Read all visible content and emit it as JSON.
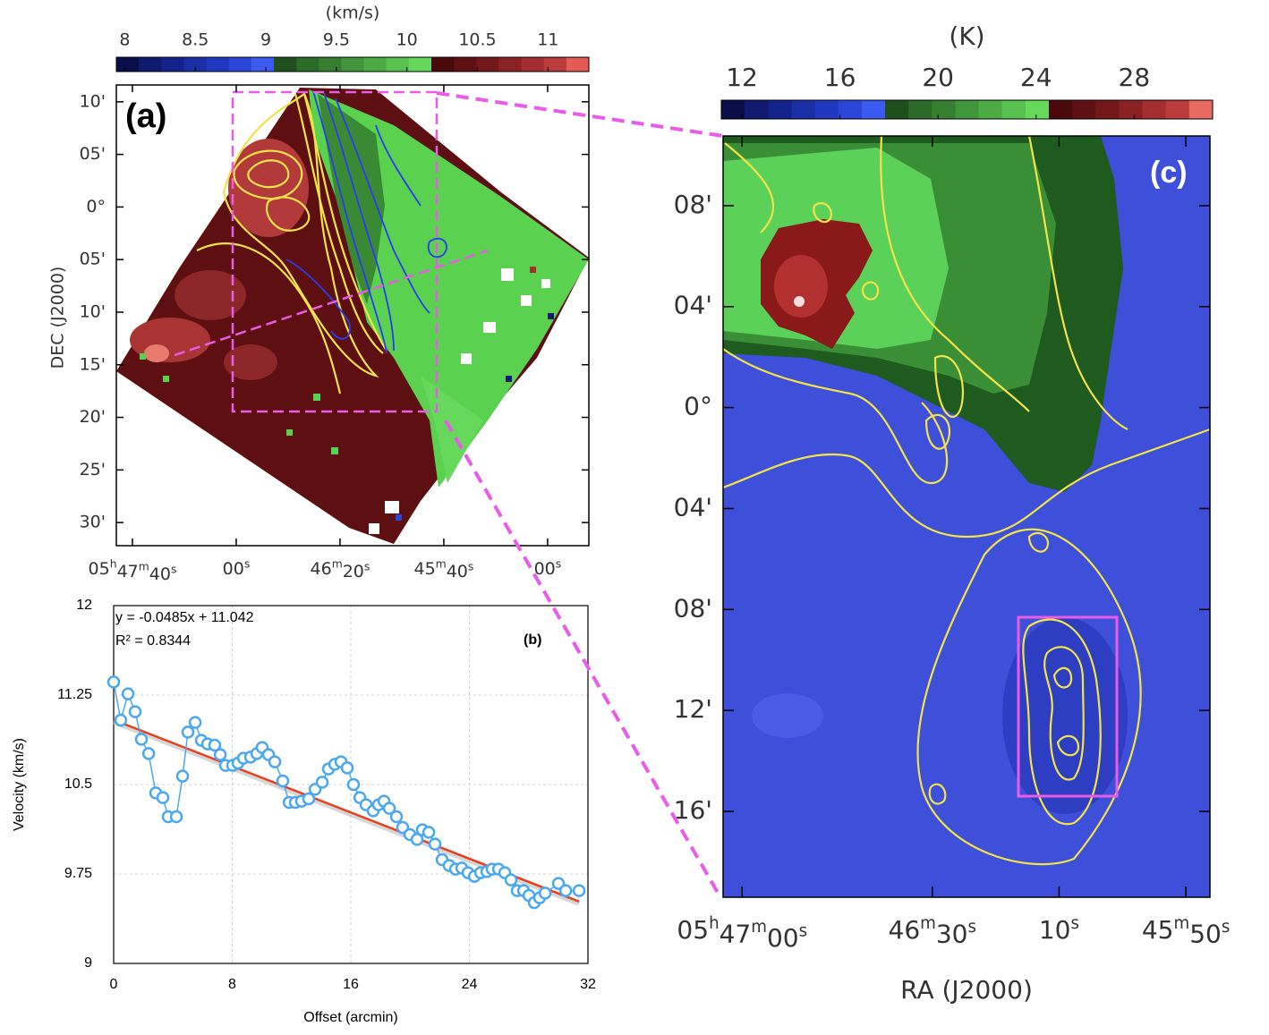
{
  "chart_data": [
    {
      "type": "map",
      "panel_label": "(a)",
      "ylabel": "DEC (J2000)",
      "colorbar": {
        "label": "(km/s)",
        "ticks": [
          8,
          8.5,
          9,
          9.5,
          10,
          10.5,
          11
        ],
        "lim": [
          7.94,
          11.29
        ],
        "colors": [
          "#0a0f4a",
          "#101a6e",
          "#14228c",
          "#1a2ea6",
          "#2038c0",
          "#2a46d8",
          "#3a5af0",
          "#1f4f1c",
          "#2b6a27",
          "#367f31",
          "#41953b",
          "#4cab45",
          "#58c150",
          "#66d85c",
          "#4a0a0c",
          "#5e1013",
          "#72171a",
          "#8a2224",
          "#a22e30",
          "#bc3c3c",
          "#e65a55"
        ]
      },
      "xlim": [
        2866.2,
        2684.1
      ],
      "xticks": [
        {
          "value": 2860,
          "label": "05h47m40s"
        },
        {
          "value": 2820,
          "label": "00s"
        },
        {
          "value": 2780,
          "label": "46m20s"
        },
        {
          "value": 2740,
          "label": "45m40s"
        },
        {
          "value": 2700,
          "label": "00s"
        }
      ],
      "ylim": [
        -32.2,
        11.6
      ],
      "yticks": [
        {
          "value": 10,
          "label": "10'"
        },
        {
          "value": 5,
          "label": "05'"
        },
        {
          "value": 0,
          "label": "0°"
        },
        {
          "value": -5,
          "label": "05'"
        },
        {
          "value": -10,
          "label": "10'"
        },
        {
          "value": -15,
          "label": "15'"
        },
        {
          "value": -20,
          "label": "20'"
        },
        {
          "value": -25,
          "label": "25'"
        },
        {
          "value": -30,
          "label": "30'"
        }
      ]
    },
    {
      "type": "scatter",
      "panel_label": "(b)",
      "xlabel": "Offset (arcmin)",
      "ylabel": "Velocity (km/s)",
      "annotations": [
        "y = -0.0485x + 11.042",
        "R² = 0.8344"
      ],
      "xlim": [
        0,
        32
      ],
      "xticks": [
        0,
        8,
        16,
        24,
        32
      ],
      "ylim": [
        9,
        12
      ],
      "yticks": [
        9,
        9.75,
        10.5,
        11.25,
        12
      ],
      "grid": true,
      "x": [
        0,
        0.48,
        0.97,
        1.45,
        1.87,
        2.36,
        2.84,
        3.32,
        3.68,
        4.23,
        4.65,
        5.01,
        5.5,
        5.92,
        6.34,
        6.82,
        7.19,
        7.55,
        8.03,
        8.39,
        8.76,
        9.24,
        9.66,
        10.02,
        10.45,
        10.87,
        11.41,
        11.84,
        12.26,
        12.68,
        13.16,
        13.59,
        14.07,
        14.49,
        14.92,
        15.34,
        15.76,
        16.18,
        16.61,
        17.03,
        17.51,
        17.87,
        18.24,
        18.6,
        19.08,
        19.5,
        19.99,
        20.47,
        20.83,
        21.26,
        21.68,
        22.16,
        22.64,
        23.07,
        23.49,
        23.91,
        24.34,
        24.76,
        25.18,
        25.54,
        25.97,
        26.39,
        26.81,
        27.23,
        27.66,
        28.02,
        28.38,
        28.74,
        29.11,
        30.01,
        30.5,
        31.4
      ],
      "series": [
        {
          "color": "#4aa8f0",
          "values": [
            11.36,
            11.04,
            11.26,
            11.11,
            10.88,
            10.76,
            10.43,
            10.39,
            10.23,
            10.23,
            10.57,
            10.94,
            11.02,
            10.87,
            10.84,
            10.83,
            10.75,
            10.66,
            10.66,
            10.68,
            10.72,
            10.73,
            10.76,
            10.81,
            10.75,
            10.69,
            10.53,
            10.35,
            10.35,
            10.36,
            10.38,
            10.46,
            10.52,
            10.63,
            10.67,
            10.69,
            10.64,
            10.5,
            10.39,
            10.33,
            10.28,
            10.33,
            10.36,
            10.3,
            10.23,
            10.14,
            10.08,
            10.04,
            10.12,
            10.1,
            10.0,
            9.87,
            9.82,
            9.79,
            9.8,
            9.76,
            9.73,
            9.76,
            9.77,
            9.79,
            9.79,
            9.76,
            9.7,
            9.61,
            9.61,
            9.57,
            9.51,
            9.55,
            9.59,
            9.67,
            9.61,
            9.61
          ]
        }
      ],
      "trendline": {
        "color": "#e8401c",
        "x": [
          0,
          31.4
        ],
        "values": [
          11.042,
          9.519
        ]
      }
    },
    {
      "type": "map",
      "panel_label": "(c)",
      "xlabel": "RA (J2000)",
      "colorbar": {
        "label": "(K)",
        "ticks": [
          12,
          16,
          20,
          24,
          28
        ],
        "lim": [
          11.16,
          31.2
        ],
        "colors": [
          "#0a0f4a",
          "#101a6e",
          "#14228c",
          "#1a2ea6",
          "#2038c0",
          "#2a46d8",
          "#3a5af0",
          "#1f4f1c",
          "#2b6a27",
          "#367f31",
          "#41953b",
          "#4cab45",
          "#58c150",
          "#66d85c",
          "#4a0a0c",
          "#5e1013",
          "#72171a",
          "#8a2224",
          "#a22e30",
          "#bc3c3c",
          "#e86a60"
        ]
      },
      "xlim": [
        2823,
        2746.2
      ],
      "xticks": [
        {
          "value": 2820,
          "label": "05h47m00s"
        },
        {
          "value": 2790,
          "label": "46m30s"
        },
        {
          "value": 2770,
          "label": "10s"
        },
        {
          "value": 2750,
          "label": "45m50s"
        }
      ],
      "ylim": [
        -19.4,
        10.76
      ],
      "yticks": [
        {
          "value": 8,
          "label": "08'"
        },
        {
          "value": 4,
          "label": "04'"
        },
        {
          "value": 0,
          "label": "0°"
        },
        {
          "value": -4,
          "label": "04'"
        },
        {
          "value": -8,
          "label": "08'"
        },
        {
          "value": -12,
          "label": "12'"
        },
        {
          "value": -16,
          "label": "16'"
        }
      ]
    }
  ]
}
